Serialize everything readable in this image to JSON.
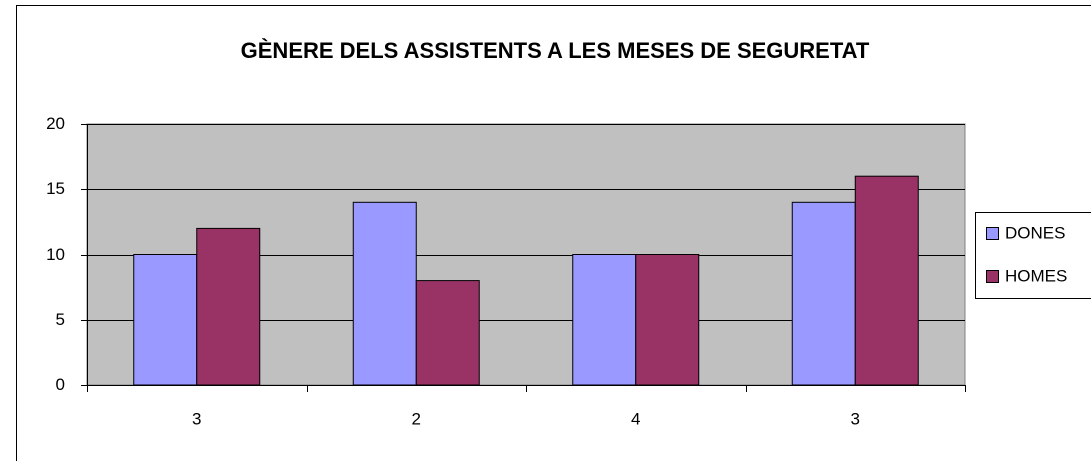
{
  "chart_data": {
    "type": "bar",
    "title": "GÈNERE DELS ASSISTENTS A LES MESES DE SEGURETAT",
    "categories": [
      "3",
      "2",
      "4",
      "3"
    ],
    "series": [
      {
        "name": "DONES",
        "color": "#9999ff",
        "values": [
          10,
          14,
          10,
          14
        ]
      },
      {
        "name": "HOMES",
        "color": "#993366",
        "values": [
          12,
          8,
          10,
          16
        ]
      }
    ],
    "ylim": [
      0,
      20
    ],
    "yticks": [
      0,
      5,
      10,
      15,
      20
    ],
    "grid": true,
    "legend": "right"
  }
}
